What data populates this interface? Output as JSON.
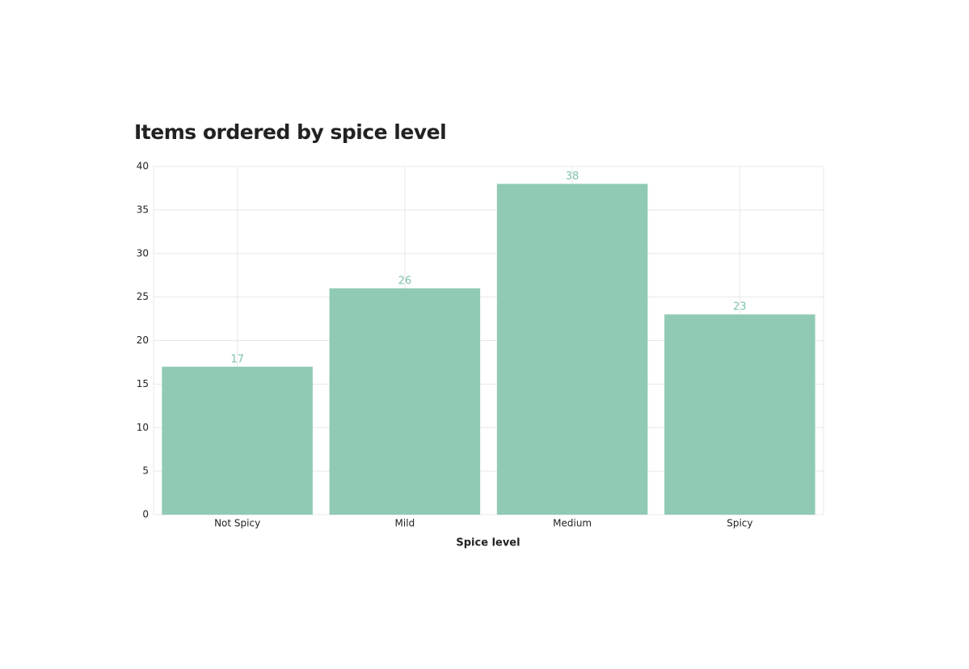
{
  "chart_data": {
    "type": "bar",
    "title": "Items ordered by spice level",
    "x_label": "Spice level",
    "categories": [
      "Not Spicy",
      "Mild",
      "Medium",
      "Spicy"
    ],
    "values": [
      17,
      26,
      38,
      23
    ],
    "color": "#90cab4",
    "value_label_color": "#7fc3a9",
    "ylim": [
      0,
      40
    ],
    "yticks": [
      0,
      5,
      10,
      15,
      20,
      25,
      30,
      35,
      40
    ],
    "grid": true
  }
}
